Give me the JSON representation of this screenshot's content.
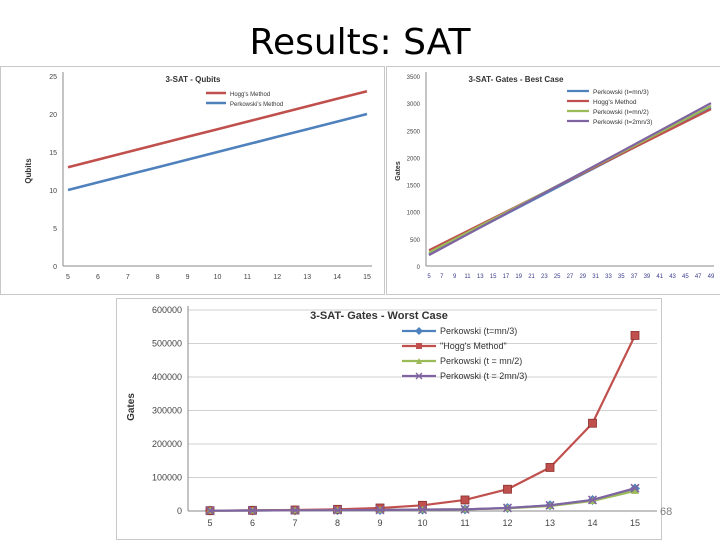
{
  "slide": {
    "title": "Results: SAT",
    "page_number": "68"
  },
  "chart_data": [
    {
      "type": "line",
      "title": "3-SAT - Qubits",
      "xlabel": "",
      "ylabel": "Qubits",
      "categories": [
        "5",
        "6",
        "7",
        "8",
        "9",
        "10",
        "11",
        "12",
        "13",
        "14",
        "15"
      ],
      "ylim": [
        0,
        25
      ],
      "yticks": [
        0,
        5,
        10,
        15,
        20,
        25
      ],
      "grid": false,
      "legend": "top-right",
      "series": [
        {
          "name": "Hogg's Method",
          "color": "#c0504d",
          "values": [
            13,
            14,
            15,
            16,
            17,
            18,
            19,
            20,
            21,
            22,
            23
          ]
        },
        {
          "name": "Perkowski's Method",
          "color": "#4f81bd",
          "values": [
            10,
            11,
            12,
            13,
            14,
            15,
            16,
            17,
            18,
            19,
            20
          ]
        }
      ]
    },
    {
      "type": "line",
      "title": "3-SAT- Gates - Best Case",
      "xlabel": "",
      "ylabel": "Gates",
      "categories": [
        "5",
        "7",
        "9",
        "11",
        "13",
        "15",
        "17",
        "19",
        "21",
        "23",
        "25",
        "27",
        "29",
        "31",
        "33",
        "35",
        "37",
        "39",
        "41",
        "43",
        "45",
        "47",
        "49"
      ],
      "ylim": [
        0,
        3500
      ],
      "yticks": [
        0,
        500,
        1000,
        1500,
        2000,
        2500,
        3000,
        3500
      ],
      "grid": false,
      "legend": "top-right",
      "series": [
        {
          "name": "Perkowski (t=mn/3)",
          "color": "#4f81bd",
          "start": 220,
          "end": 2920
        },
        {
          "name": "Hogg's Method",
          "color": "#c0504d",
          "start": 290,
          "end": 2890
        },
        {
          "name": "Perkowski (t=mn/2)",
          "color": "#9bbb59",
          "start": 250,
          "end": 2950
        },
        {
          "name": "Perkowski (t=2mn/3)",
          "color": "#8064a2",
          "start": 200,
          "end": 3000
        }
      ]
    },
    {
      "type": "line",
      "title": "3-SAT- Gates - Worst Case",
      "xlabel": "",
      "ylabel": "Gates",
      "categories": [
        "5",
        "6",
        "7",
        "8",
        "9",
        "10",
        "11",
        "12",
        "13",
        "14",
        "15"
      ],
      "ylim": [
        0,
        600000
      ],
      "yticks": [
        0,
        100000,
        200000,
        300000,
        400000,
        500000,
        600000
      ],
      "grid": true,
      "legend": "top-right",
      "series": [
        {
          "name": "Perkowski (t=mn/3)",
          "color": "#4f81bd",
          "marker": "diamond",
          "values": [
            1000,
            1500,
            2000,
            2500,
            3000,
            4000,
            5000,
            9000,
            17000,
            33000,
            67000
          ]
        },
        {
          "name": "\"Hogg's Method\"",
          "color": "#c0504d",
          "marker": "square",
          "values": [
            1000,
            2000,
            3000,
            5000,
            9000,
            17000,
            33000,
            65000,
            130000,
            262000,
            524000
          ]
        },
        {
          "name": "Perkowski (t = mn/2)",
          "color": "#9bbb59",
          "marker": "triangle",
          "values": [
            1000,
            1500,
            2000,
            2500,
            3000,
            4000,
            5000,
            8000,
            15000,
            30000,
            60000
          ]
        },
        {
          "name": "Perkowski (t = 2mn/3)",
          "color": "#8064a2",
          "marker": "x",
          "values": [
            1000,
            1500,
            2000,
            2500,
            3000,
            4000,
            5000,
            9000,
            17000,
            33000,
            68000
          ]
        }
      ]
    }
  ]
}
